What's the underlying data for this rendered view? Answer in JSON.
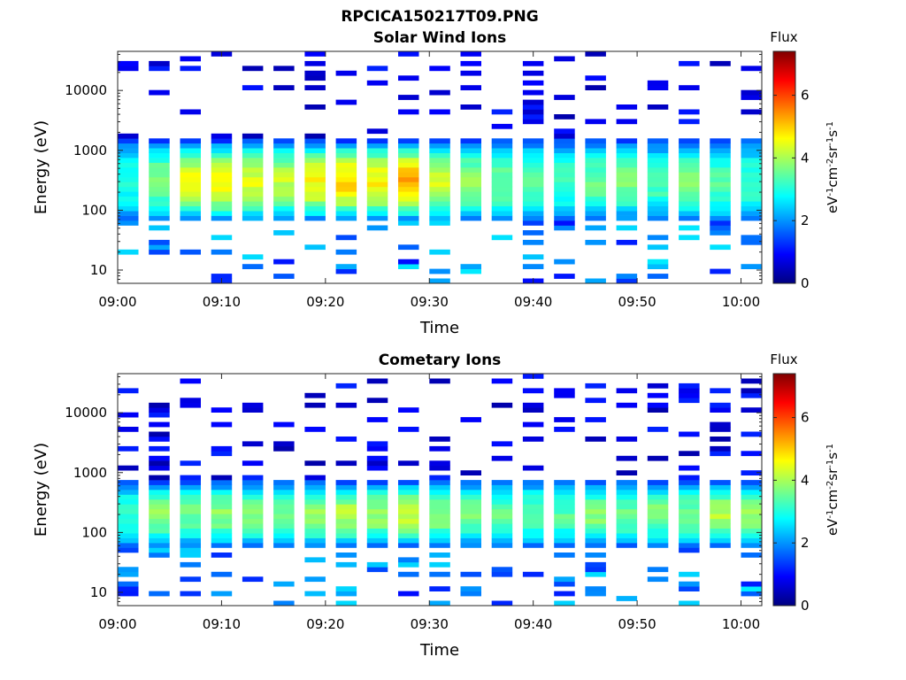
{
  "figure": {
    "title": "RPCICA150217T09.PNG"
  },
  "colors": {
    "axis": "#262626",
    "background": "#ffffff",
    "colormap": "jet"
  },
  "chart_data": [
    {
      "type": "heatmap",
      "title": "Solar Wind Ions",
      "xlabel": "Time",
      "ylabel": "Energy (eV)",
      "x_ticks": [
        "09:00",
        "09:10",
        "09:20",
        "09:30",
        "09:40",
        "09:50",
        "10:00"
      ],
      "x_range": [
        "09:00",
        "10:02"
      ],
      "y_scale": "log",
      "y_ticks": [
        "10",
        "100",
        "1000",
        "10000"
      ],
      "y_range": [
        6,
        45000
      ],
      "colorbar": {
        "label_top": "Flux",
        "unit_label": "eV-1cm-2sr-1s-1",
        "ticks": [
          "0",
          "2",
          "4",
          "6"
        ],
        "range": [
          0,
          7.4
        ]
      },
      "time_columns": [
        "09:00",
        "09:03",
        "09:06",
        "09:09",
        "09:12",
        "09:15",
        "09:18",
        "09:21",
        "09:24",
        "09:27",
        "09:30",
        "09:33",
        "09:36",
        "09:39",
        "09:42",
        "09:45",
        "09:48",
        "09:51",
        "09:54",
        "09:57",
        "10:00"
      ],
      "peak_flux": [
        3.0,
        3.7,
        4.5,
        4.6,
        4.4,
        4.2,
        4.6,
        4.9,
        4.7,
        5.2,
        4.3,
        3.8,
        3.6,
        3.5,
        3.3,
        3.5,
        3.6,
        3.3,
        3.7,
        3.4,
        3.2
      ],
      "core_energy_range_eV": [
        70,
        1500
      ],
      "peak_energy_eV": 300,
      "grid": false
    },
    {
      "type": "heatmap",
      "title": "Cometary Ions",
      "xlabel": "Time",
      "ylabel": "Energy (eV)",
      "x_ticks": [
        "09:00",
        "09:10",
        "09:20",
        "09:30",
        "09:40",
        "09:50",
        "10:00"
      ],
      "x_range": [
        "09:00",
        "10:02"
      ],
      "y_scale": "log",
      "y_ticks": [
        "10",
        "100",
        "1000",
        "10000"
      ],
      "y_range": [
        6,
        45000
      ],
      "colorbar": {
        "label_top": "Flux",
        "unit_label": "eV-1cm-2sr-1s-1",
        "ticks": [
          "0",
          "2",
          "4",
          "6"
        ],
        "range": [
          0,
          7.4
        ]
      },
      "time_columns": [
        "09:00",
        "09:03",
        "09:06",
        "09:09",
        "09:12",
        "09:15",
        "09:18",
        "09:21",
        "09:24",
        "09:27",
        "09:30",
        "09:33",
        "09:36",
        "09:39",
        "09:42",
        "09:45",
        "09:48",
        "09:51",
        "09:54",
        "09:57",
        "10:00"
      ],
      "peak_flux": [
        3.2,
        3.8,
        3.6,
        3.8,
        3.7,
        3.6,
        3.9,
        4.1,
        3.9,
        4.2,
        3.8,
        3.6,
        3.5,
        3.5,
        3.4,
        3.8,
        3.6,
        3.7,
        3.6,
        4.1,
        3.8
      ],
      "core_energy_range_eV": [
        60,
        700
      ],
      "peak_energy_eV": 200,
      "grid": false
    }
  ]
}
